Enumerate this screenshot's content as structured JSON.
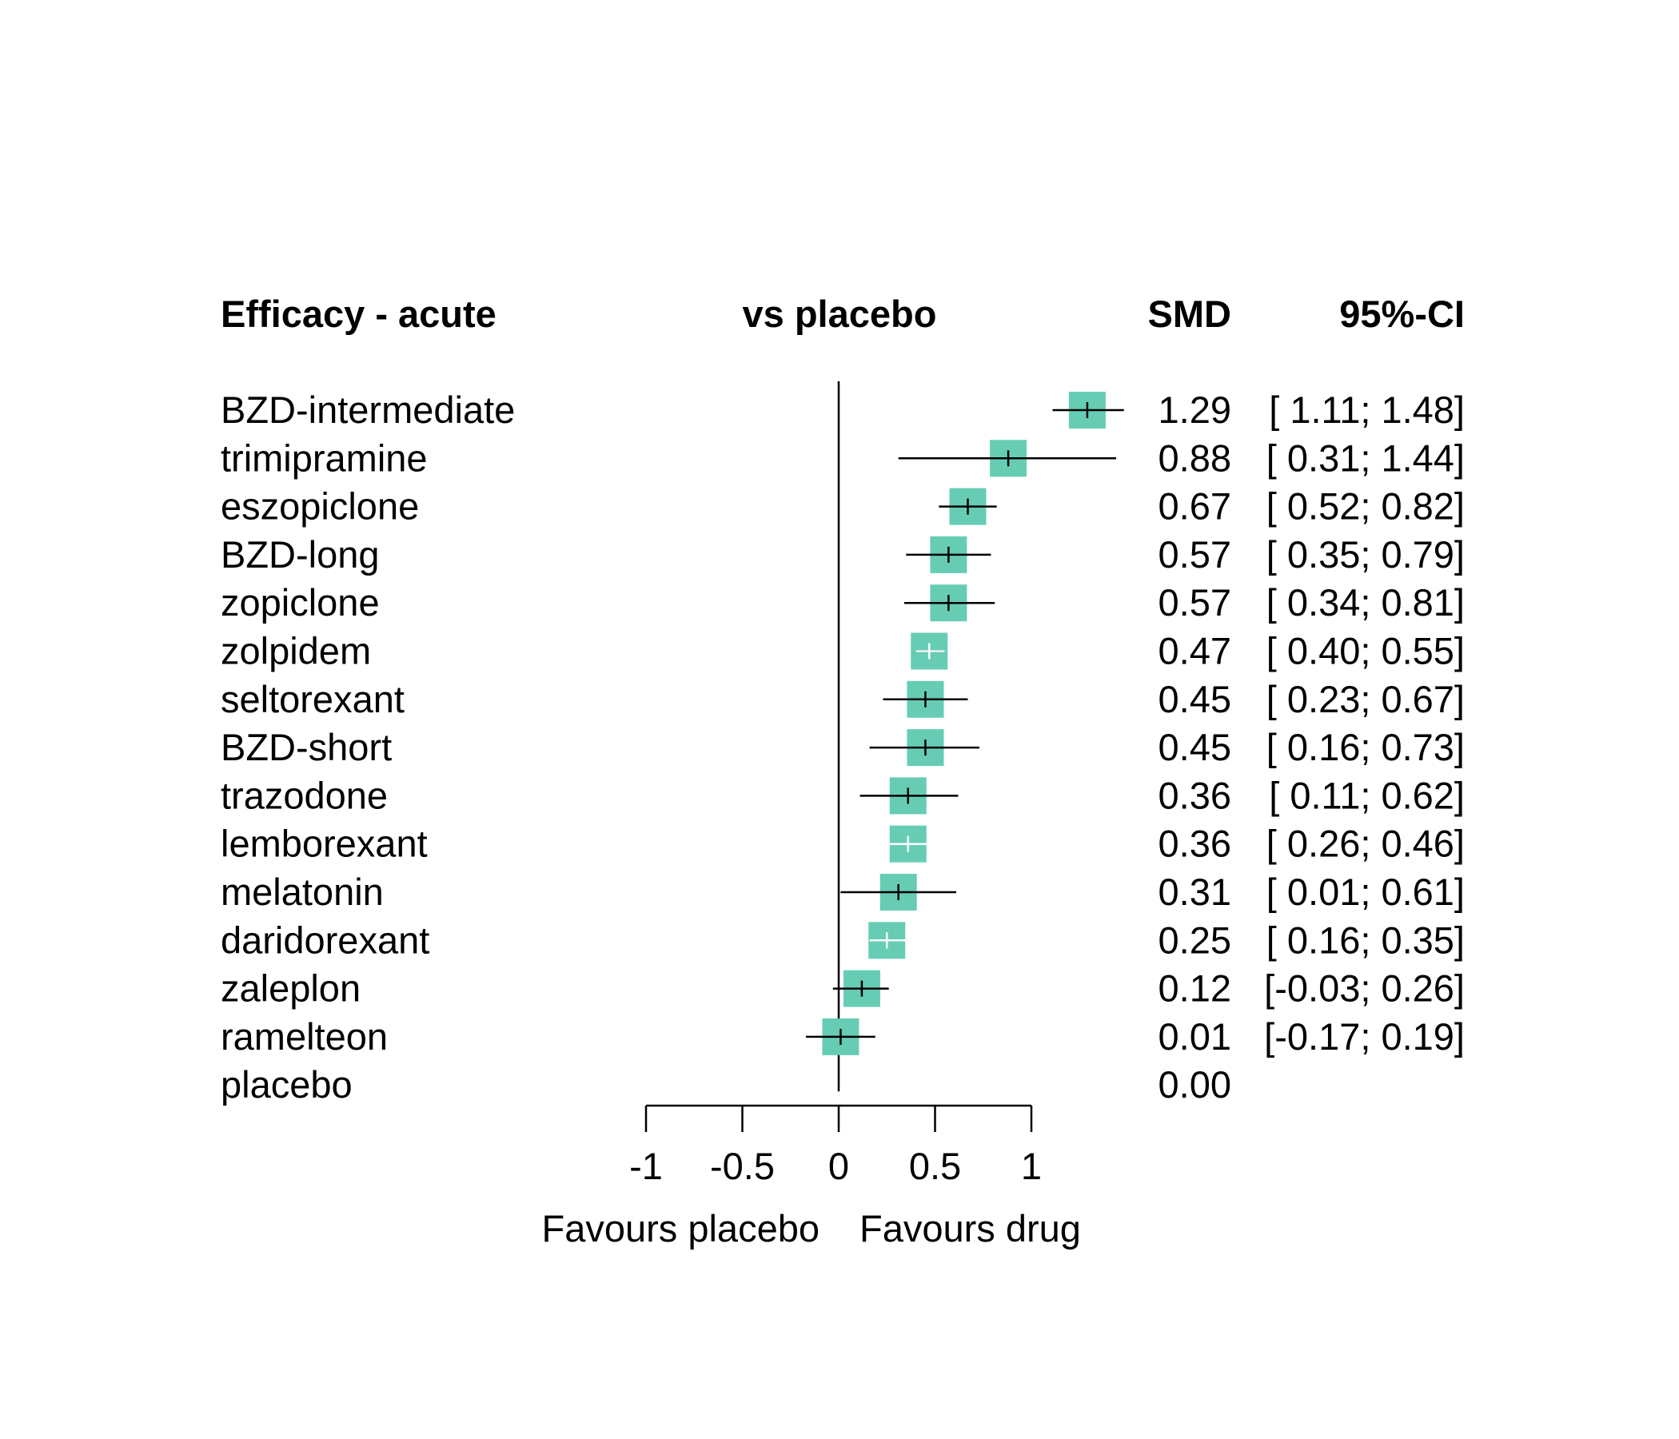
{
  "chart_data": {
    "type": "forest",
    "headers": {
      "group": "Efficacy - acute",
      "comparison": "vs placebo",
      "estimate": "SMD",
      "ci": "95%-CI"
    },
    "rows": [
      {
        "label": "BZD-intermediate",
        "smd": 1.29,
        "lower": 1.11,
        "upper": 1.48,
        "smd_text": "1.29",
        "ci_text": "[ 1.11; 1.48]",
        "weight": 1.0
      },
      {
        "label": "trimipramine",
        "smd": 0.88,
        "lower": 0.31,
        "upper": 1.44,
        "smd_text": "0.88",
        "ci_text": "[ 0.31; 1.44]",
        "weight": 1.0
      },
      {
        "label": "eszopiclone",
        "smd": 0.67,
        "lower": 0.52,
        "upper": 0.82,
        "smd_text": "0.67",
        "ci_text": "[ 0.52; 0.82]",
        "weight": 1.0
      },
      {
        "label": "BZD-long",
        "smd": 0.57,
        "lower": 0.35,
        "upper": 0.79,
        "smd_text": "0.57",
        "ci_text": "[ 0.35; 0.79]",
        "weight": 1.0
      },
      {
        "label": "zopiclone",
        "smd": 0.57,
        "lower": 0.34,
        "upper": 0.81,
        "smd_text": "0.57",
        "ci_text": "[ 0.34; 0.81]",
        "weight": 1.0
      },
      {
        "label": "zolpidem",
        "smd": 0.47,
        "lower": 0.4,
        "upper": 0.55,
        "smd_text": "0.47",
        "ci_text": "[ 0.40; 0.55]",
        "weight": 1.0
      },
      {
        "label": "seltorexant",
        "smd": 0.45,
        "lower": 0.23,
        "upper": 0.67,
        "smd_text": "0.45",
        "ci_text": "[ 0.23; 0.67]",
        "weight": 1.0
      },
      {
        "label": "BZD-short",
        "smd": 0.45,
        "lower": 0.16,
        "upper": 0.73,
        "smd_text": "0.45",
        "ci_text": "[ 0.16; 0.73]",
        "weight": 1.0
      },
      {
        "label": "trazodone",
        "smd": 0.36,
        "lower": 0.11,
        "upper": 0.62,
        "smd_text": "0.36",
        "ci_text": "[ 0.11; 0.62]",
        "weight": 1.0
      },
      {
        "label": "lemborexant",
        "smd": 0.36,
        "lower": 0.26,
        "upper": 0.46,
        "smd_text": "0.36",
        "ci_text": "[ 0.26; 0.46]",
        "weight": 1.0
      },
      {
        "label": "melatonin",
        "smd": 0.31,
        "lower": 0.01,
        "upper": 0.61,
        "smd_text": "0.31",
        "ci_text": "[ 0.01; 0.61]",
        "weight": 1.0
      },
      {
        "label": "daridorexant",
        "smd": 0.25,
        "lower": 0.16,
        "upper": 0.35,
        "smd_text": "0.25",
        "ci_text": "[ 0.16; 0.35]",
        "weight": 1.0
      },
      {
        "label": "zaleplon",
        "smd": 0.12,
        "lower": -0.03,
        "upper": 0.26,
        "smd_text": "0.12",
        "ci_text": "[-0.03; 0.26]",
        "weight": 1.0
      },
      {
        "label": "ramelteon",
        "smd": 0.01,
        "lower": -0.17,
        "upper": 0.19,
        "smd_text": "0.01",
        "ci_text": "[-0.17; 0.19]",
        "weight": 1.0
      },
      {
        "label": "placebo",
        "smd": 0.0,
        "lower": null,
        "upper": null,
        "smd_text": "0.00",
        "ci_text": "",
        "weight": 0
      }
    ],
    "x_axis": {
      "ticks": [
        -1,
        -0.5,
        0,
        0.5,
        1
      ],
      "tick_labels": [
        "-1",
        "-0.5",
        "0",
        "0.5",
        "1"
      ],
      "reference_line": 0,
      "left_label": "Favours placebo",
      "right_label": "Favours drug"
    },
    "colors": {
      "box": "#66cdb4",
      "line": "#000000",
      "inner_tick_contrast": "#ffffff"
    }
  }
}
